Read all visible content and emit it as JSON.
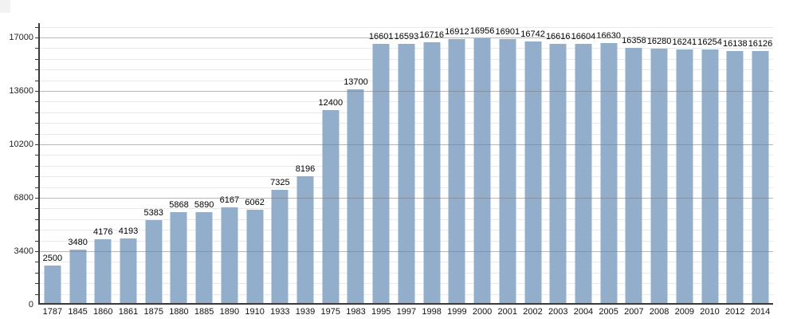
{
  "chart_data": {
    "type": "bar",
    "title": "",
    "xlabel": "",
    "ylabel": "",
    "categories": [
      "1787",
      "1845",
      "1860",
      "1861",
      "1875",
      "1880",
      "1885",
      "1890",
      "1910",
      "1933",
      "1939",
      "1975",
      "1983",
      "1995",
      "1997",
      "1998",
      "1999",
      "2000",
      "2001",
      "2002",
      "2003",
      "2004",
      "2005",
      "2007",
      "2008",
      "2009",
      "2010",
      "2012",
      "2014"
    ],
    "values": [
      2500,
      3480,
      4176,
      4193,
      5383,
      5868,
      5890,
      6167,
      6062,
      7325,
      8196,
      12400,
      13700,
      16601,
      16593,
      16716,
      16912,
      16956,
      16901,
      16742,
      16616,
      16604,
      16630,
      16358,
      16280,
      16241,
      16254,
      16138,
      16126
    ],
    "bar_value_labels": [
      "2500",
      "3480",
      "4176",
      "4193",
      "5383",
      "5868",
      "5890",
      "6167",
      "6062",
      "7325",
      "8196",
      "12400",
      "13700",
      "16601",
      "16593",
      "16716",
      "16912",
      "16956",
      "16901",
      "16742",
      "16616",
      "16604",
      "16630",
      "16358",
      "16280",
      "16241",
      "16254",
      "16138",
      "16126"
    ],
    "ylim": [
      0,
      17850
    ],
    "yticks": [
      0,
      3400,
      6800,
      10200,
      13600,
      17000
    ],
    "ytick_labels": [
      "0",
      "3400",
      "6800",
      "10200",
      "13600",
      "17000"
    ],
    "minor_grid_step": 680,
    "grid": "major-and-minor-horizontal",
    "legend": "none",
    "bar_labels_shown": true
  },
  "colors": {
    "bar_fill": "#93aecb",
    "minor_gridline": "#e8eaed",
    "major_gridline": "#7d7d7d",
    "axis": "#3a3a3a",
    "value_label_text": "#000000",
    "x_label_text": "#111111",
    "y_label_text": "#222222",
    "background": "#ffffff"
  }
}
